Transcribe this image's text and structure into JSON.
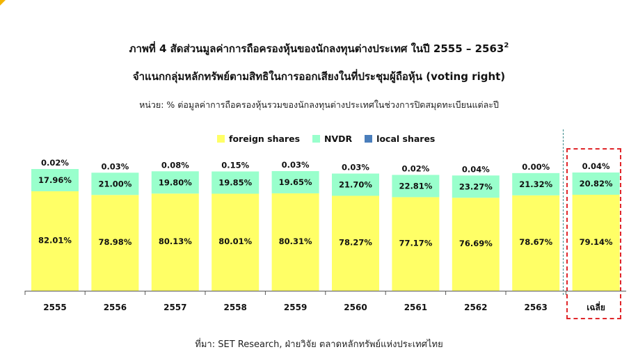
{
  "title_line1": "ภาพที่ 4 สัดส่วนมูลค่าการถือครองหุ้นของนักลงทุนต่างประเทศ ในปี 2555 – 2563",
  "title_footnote": "2",
  "title_line2": "จำแนกกลุ่มหลักทรัพย์ตามสิทธิในการออกเสียงในที่ประชุมผู้ถือหุ้น (voting right)",
  "unit_text": "หน่วย: % ต่อมูลค่าการถือครองหุ้นรวมของนักลงทุนต่างประเทศในช่วงการปิดสมุดทะเบียนแต่ละปี",
  "source_text": "ที่มา: SET Research, ฝ่ายวิจัย ตลาดหลักทรัพย์แห่งประเทศไทย",
  "colors": {
    "foreign": "#ffff66",
    "nvdr": "#99ffcc",
    "local": "#4a7ebb",
    "highlight_box": "#e0262a"
  },
  "chart_data": {
    "type": "bar",
    "stacked": true,
    "normalized_percent": true,
    "categories": [
      "2555",
      "2556",
      "2557",
      "2558",
      "2559",
      "2560",
      "2561",
      "2562",
      "2563",
      "เฉลี่ย"
    ],
    "series": [
      {
        "name": "foreign shares",
        "values": [
          82.01,
          78.98,
          80.13,
          80.01,
          80.31,
          78.27,
          77.17,
          76.69,
          78.67,
          79.14
        ]
      },
      {
        "name": "NVDR",
        "values": [
          17.96,
          21.0,
          19.8,
          19.85,
          19.65,
          21.7,
          22.81,
          23.27,
          21.32,
          20.82
        ]
      },
      {
        "name": "local shares",
        "values": [
          0.02,
          0.03,
          0.08,
          0.15,
          0.03,
          0.03,
          0.02,
          0.04,
          0.0,
          0.04
        ]
      }
    ],
    "data_labels": {
      "foreign shares": [
        "82.01%",
        "78.98%",
        "80.13%",
        "80.01%",
        "80.31%",
        "78.27%",
        "77.17%",
        "76.69%",
        "78.67%",
        "79.14%"
      ],
      "NVDR": [
        "17.96%",
        "21.00%",
        "19.80%",
        "19.85%",
        "19.65%",
        "21.70%",
        "22.81%",
        "23.27%",
        "21.32%",
        "20.82%"
      ],
      "local shares": [
        "0.02%",
        "0.03%",
        "0.08%",
        "0.15%",
        "0.03%",
        "0.03%",
        "0.02%",
        "0.04%",
        "0.00%",
        "0.04%"
      ]
    },
    "legend_position": "top",
    "y_axis_visible": false,
    "grid": false,
    "highlighted_category": "เฉลี่ย"
  }
}
